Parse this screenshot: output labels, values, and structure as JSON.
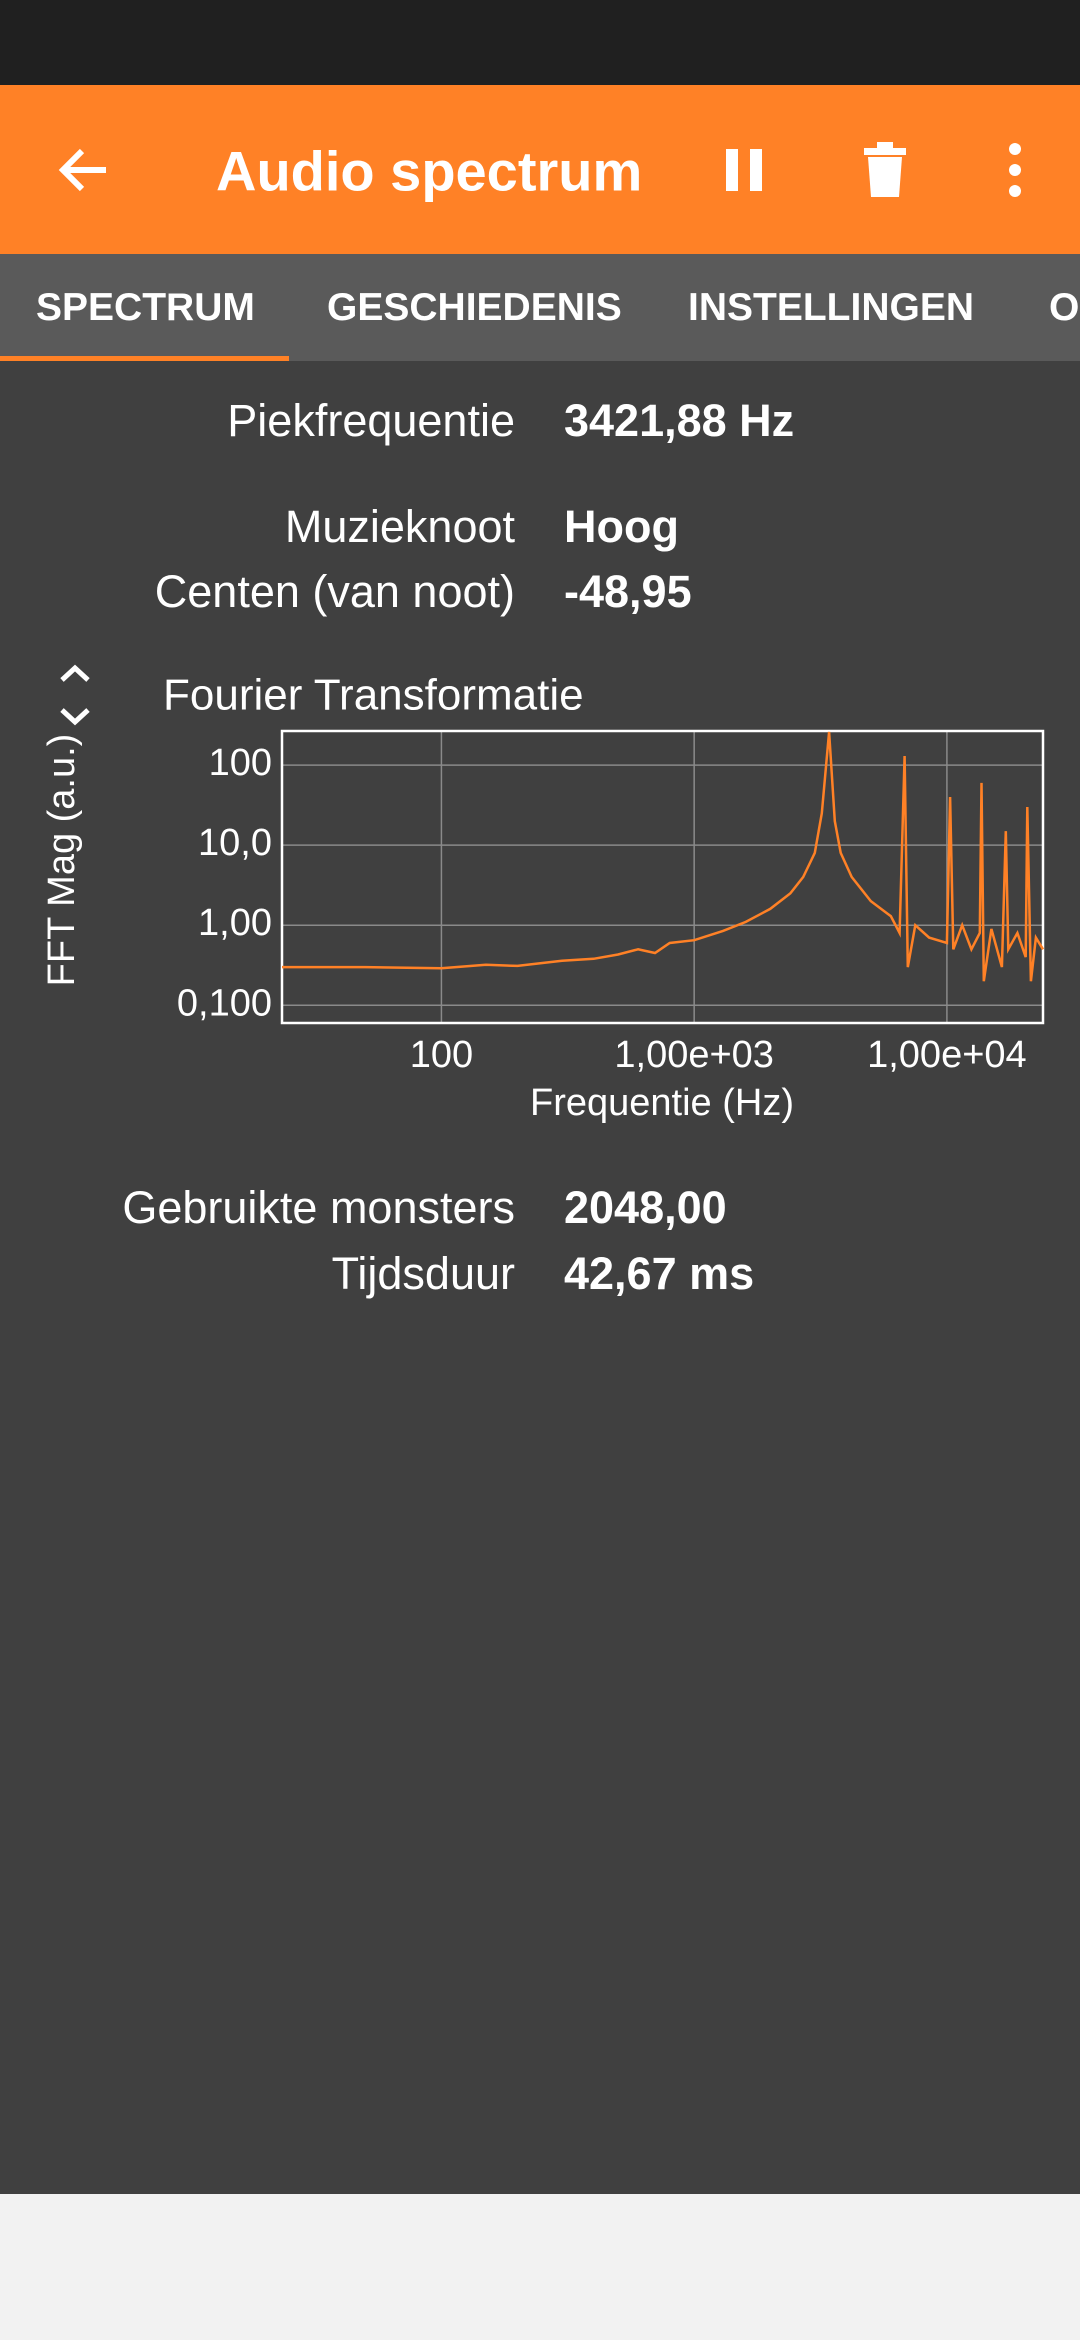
{
  "app_bar": {
    "title": "Audio spectrum"
  },
  "tabs": [
    "SPECTRUM",
    "GESCHIEDENIS",
    "INSTELLINGEN",
    "OI"
  ],
  "readouts_top": [
    {
      "label": "Piekfrequentie",
      "value": "3421,88 Hz"
    },
    {
      "label": "Muzieknoot",
      "value": "Hoog"
    },
    {
      "label": "Centen (van noot)",
      "value": "-48,95"
    }
  ],
  "chart_data": {
    "type": "line",
    "title": "Fourier Transformatie",
    "y_label": "FFT Mag (a.u.)",
    "x_label": "Frequentie (Hz)",
    "xscale": "log",
    "yscale": "log",
    "grid": true,
    "color": "#ff8126",
    "xlim": [
      23.4,
      24000
    ],
    "ylim": [
      0.06,
      267
    ],
    "xticks": [
      100,
      {
        "value": 1000,
        "label": "1,00e+03"
      },
      {
        "value": 10000,
        "label": "1,00e+04"
      }
    ],
    "yticks": [
      {
        "value": 0.1,
        "label": "0,100"
      },
      {
        "value": 1,
        "label": "1,00"
      },
      {
        "value": 10,
        "label": "10,0"
      },
      100
    ],
    "x": [
      23.4,
      50,
      100,
      150,
      200,
      300,
      400,
      500,
      600,
      700,
      800,
      1000,
      1300,
      1600,
      2000,
      2400,
      2700,
      3000,
      3200,
      3420,
      3600,
      3800,
      4200,
      5000,
      6000,
      6500,
      6800,
      7000,
      7500,
      8500,
      10000,
      10300,
      10600,
      11500,
      12500,
      13500,
      13700,
      14000,
      15000,
      16500,
      17100,
      17500,
      19000,
      20500,
      20800,
      21500,
      22500,
      24000
    ],
    "values": [
      0.3,
      0.3,
      0.29,
      0.32,
      0.31,
      0.36,
      0.38,
      0.43,
      0.5,
      0.45,
      0.6,
      0.65,
      0.85,
      1.1,
      1.6,
      2.5,
      4,
      8,
      25,
      260,
      20,
      8,
      4,
      2,
      1.3,
      0.8,
      130,
      0.3,
      1.0,
      0.7,
      0.6,
      40,
      0.5,
      1,
      0.5,
      0.8,
      60,
      0.2,
      0.9,
      0.3,
      15,
      0.5,
      0.8,
      0.4,
      30,
      0.2,
      0.7,
      0.5
    ]
  },
  "readouts_bottom": [
    {
      "label": "Gebruikte monsters",
      "value": "2048,00"
    },
    {
      "label": "Tijdsduur",
      "value": "42,67 ms"
    }
  ]
}
